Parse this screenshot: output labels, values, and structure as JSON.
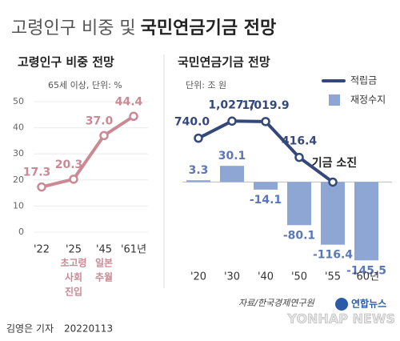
{
  "header": {
    "title_light": "고령인구 비중 및",
    "title_bold": "국민연금기금 전망"
  },
  "chart_data": [
    {
      "type": "line",
      "title": "고령인구 비중 전망",
      "subtitle": "65세 이상, 단위: %",
      "categories": [
        "'22",
        "'25",
        "'45",
        "'61년"
      ],
      "values": [
        17.3,
        20.3,
        37.0,
        44.4
      ],
      "value_labels": [
        "17.3",
        "20.3",
        "37.0",
        "44.4"
      ],
      "color": "#c98a95",
      "ylim": [
        0,
        50
      ],
      "yticks": [
        0,
        10,
        20,
        30,
        40,
        50
      ],
      "grid": true,
      "annotations": [
        {
          "lines": [
            "초고령",
            "사회",
            "진입"
          ]
        },
        {
          "lines": [
            "일본",
            "추월"
          ]
        }
      ]
    },
    {
      "type": "combo",
      "title": "국민연금기금 전망",
      "subtitle": "단위: 조 원",
      "categories": [
        "'20",
        "'30",
        "'40",
        "'50",
        "'55",
        "'60년"
      ],
      "series": [
        {
          "name": "적립금",
          "type": "line",
          "axis": "y2",
          "color": "#34497a",
          "values": [
            740.0,
            1027.7,
            1019.9,
            416.4,
            0,
            null
          ],
          "value_labels": [
            "740.0",
            "1,027.7",
            "1,019.9",
            "416.4",
            null,
            null
          ]
        },
        {
          "name": "재정수지",
          "type": "bar",
          "color": "#8ea6d4",
          "values": [
            3.3,
            30.1,
            -14.1,
            -80.1,
            -116.4,
            -145.5
          ]
        }
      ],
      "ylim": [
        -160,
        130
      ],
      "y2lim": [
        -1450,
        1180
      ],
      "legend": "top-right",
      "annotations": [
        {
          "text": "기금 소진"
        }
      ]
    }
  ],
  "footer": {
    "source": "자료/한국경제연구원",
    "byline": "김영은 기자",
    "date": "20220113",
    "logo": {
      "name": "연합뉴스",
      "english": "YONHAP NEWS"
    }
  }
}
